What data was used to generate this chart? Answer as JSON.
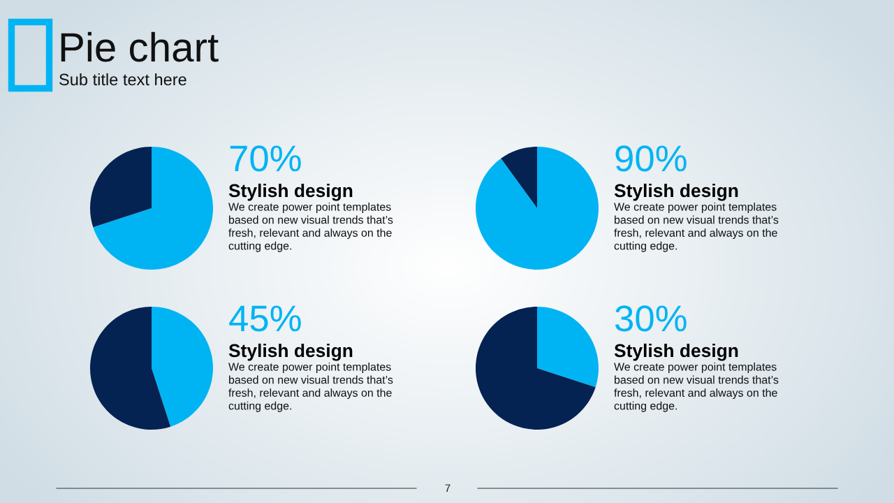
{
  "chart_data": [
    {
      "type": "other",
      "title": "Pie chart",
      "subtitle": "Sub title text here",
      "annotations": [
        "7"
      ]
    },
    {
      "type": "pie",
      "title": "Stylish design",
      "categories": [
        null,
        null
      ],
      "values": [
        70,
        30
      ],
      "colors": [
        "#00b4f4",
        "#042252"
      ],
      "value_labels": [
        "70%",
        null
      ],
      "annotations": [
        "We create power point templates\nbased on new visual trends that’s\nfresh, relevant and always on the\ncutting edge."
      ]
    },
    {
      "type": "pie",
      "title": "Stylish design",
      "categories": [
        null,
        null
      ],
      "values": [
        90,
        10
      ],
      "colors": [
        "#00b4f4",
        "#042252"
      ],
      "value_labels": [
        "90%",
        null
      ],
      "annotations": [
        "We create power point templates\nbased on new visual trends that’s\nfresh, relevant and always on the\ncutting edge."
      ]
    },
    {
      "type": "pie",
      "title": "Stylish design",
      "categories": [
        null,
        null
      ],
      "values": [
        45,
        55
      ],
      "colors": [
        "#00b4f4",
        "#042252"
      ],
      "value_labels": [
        "45%",
        null
      ],
      "annotations": [
        "We create power point templates\nbased on new visual trends that’s\nfresh, relevant and always on the\ncutting edge."
      ]
    },
    {
      "type": "pie",
      "title": "Stylish design",
      "categories": [
        null,
        null
      ],
      "values": [
        30,
        70
      ],
      "colors": [
        "#00b4f4",
        "#042252"
      ],
      "value_labels": [
        "30%",
        null
      ],
      "annotations": [
        "We create power point templates\nbased on new visual trends that’s\nfresh, relevant and always on the\ncutting edge."
      ]
    }
  ]
}
